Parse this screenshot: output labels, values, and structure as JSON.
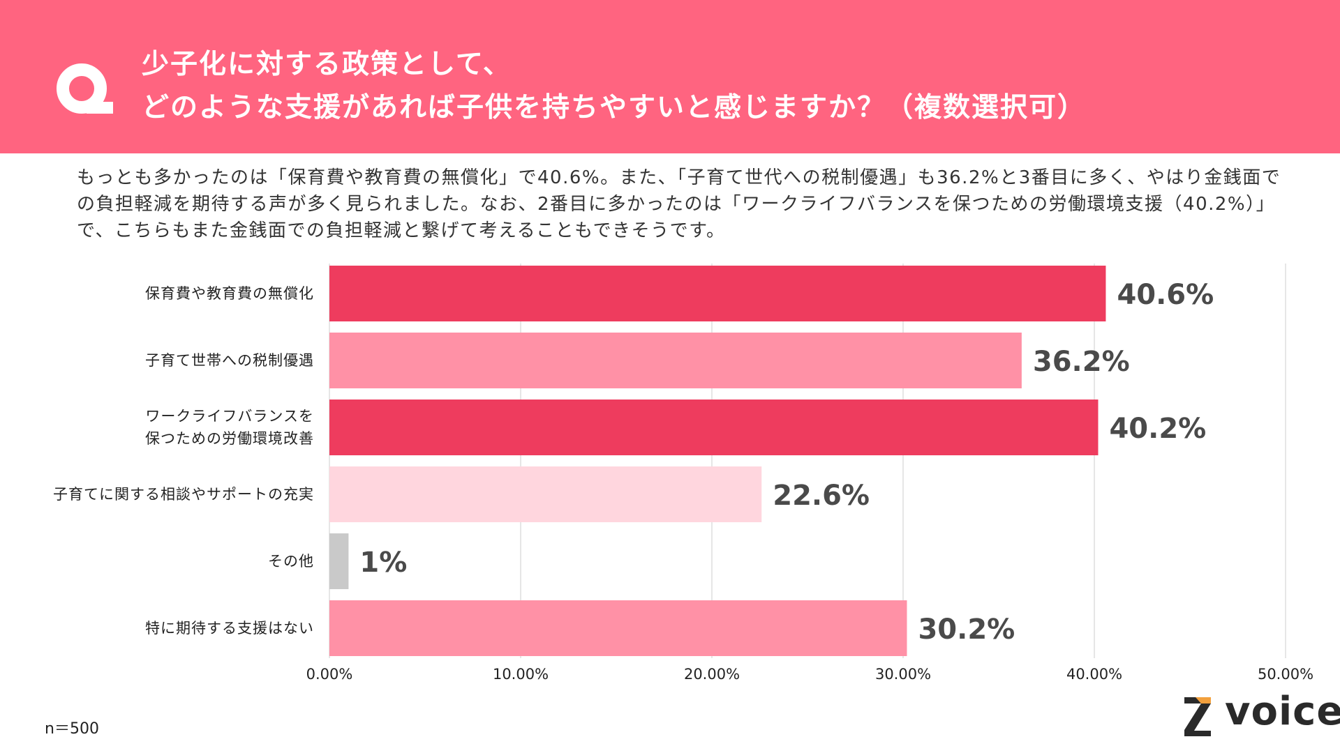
{
  "header": {
    "title": "少子化に対する政策として、\nどのような支援があれば子供を持ちやすいと感じますか？（複数選択可）"
  },
  "summary": "もっとも多かったのは「保育費や教育費の無償化」で40.6%。また、「子育て世代への税制優遇」も36.2%と3番目に多く、やはり金銭面での負担軽減を期待する声が多く見られました。なお、2番目に多かったのは「ワークライフバランスを保つための労働環境支援（40.2%）」で、こちらもまた金銭面での負担軽減と繋げて考えることもできそうです。",
  "footer": {
    "sample": "n＝500",
    "logo_text": "voice"
  },
  "colors": {
    "header_bg": "#ff6480",
    "dark_pink": "#ee3c5e",
    "mid_pink": "#ff91a6",
    "light_pink": "#ffd6de",
    "gray": "#c9c9c9"
  },
  "chart_data": {
    "type": "bar",
    "orientation": "horizontal",
    "categories": [
      "保育費や教育費の無償化",
      "子育て世帯への税制優遇",
      "ワークライフバランスを\n保つための労働環境改善",
      "子育てに関する相談やサポートの充実",
      "その他",
      "特に期待する支援はない"
    ],
    "values": [
      40.6,
      36.2,
      40.2,
      22.6,
      1,
      30.2
    ],
    "value_labels": [
      "40.6%",
      "36.2%",
      "40.2%",
      "22.6%",
      "1%",
      "30.2%"
    ],
    "bar_colors": [
      "#ee3c5e",
      "#ff91a6",
      "#ee3c5e",
      "#ffd6de",
      "#c9c9c9",
      "#ff91a6"
    ],
    "xlim": [
      0,
      50
    ],
    "xticks": [
      0,
      10,
      20,
      30,
      40,
      50
    ],
    "xtick_labels": [
      "0.00%",
      "10.00%",
      "20.00%",
      "30.00%",
      "40.00%",
      "50.00%"
    ],
    "grid": true
  }
}
